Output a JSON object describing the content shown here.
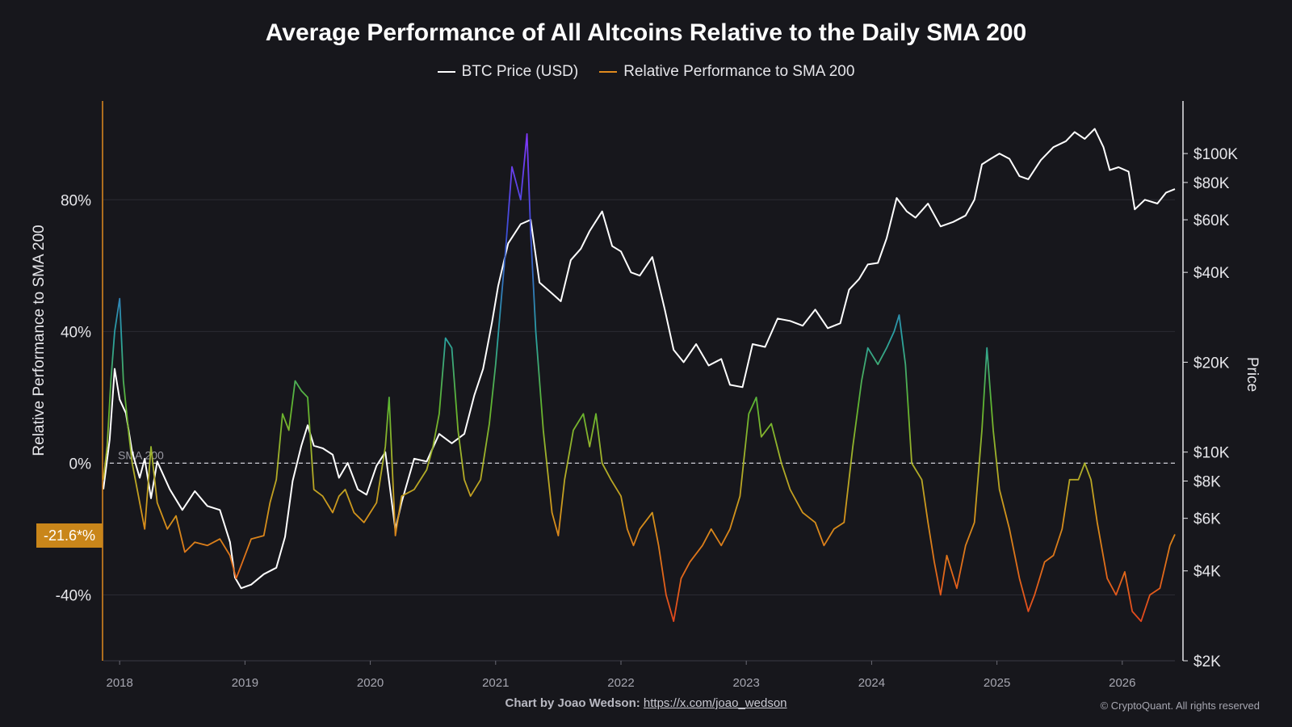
{
  "title": "Average Performance of All Altcoins Relative to the Daily SMA 200",
  "legend": [
    {
      "label": "BTC Price (USD)",
      "color": "#ffffff"
    },
    {
      "label": "Relative Performance to SMA 200",
      "color": "#e08a1e"
    }
  ],
  "footer": {
    "credit_prefix": "Chart by Joao Wedson:",
    "credit_link": "https://x.com/joao_wedson",
    "copyright": "© CryptoQuant. All rights reserved"
  },
  "current_badge": "-21.6*%",
  "sma_label": "SMA 200",
  "chart_data": {
    "type": "line",
    "title": "Average Performance of All Altcoins Relative to the Daily SMA 200",
    "xlabel": "",
    "ylabel_left": "Relative Performance to SMA 200",
    "ylabel_right": "Price",
    "x_ticks": [
      "2018",
      "2019",
      "2020",
      "2021",
      "2022",
      "2023",
      "2024",
      "2025",
      "2026"
    ],
    "y_left_ticks": [
      "80%",
      "40%",
      "0%",
      "-40%"
    ],
    "y_left_range": [
      -60,
      110
    ],
    "y_right_ticks": [
      "$100K",
      "$80K",
      "$60K",
      "$40K",
      "$20K",
      "$10K",
      "$8K",
      "$6K",
      "$4K",
      "$2K"
    ],
    "y_right_range": [
      2000,
      150000
    ],
    "y_right_scale": "log",
    "x_range": [
      2017.87,
      2026.42
    ],
    "reference_line": {
      "label": "SMA 200",
      "value": 0
    },
    "grid": true,
    "legend_position": "top-center",
    "series": [
      {
        "name": "BTC Price (USD)",
        "axis": "right",
        "color": "#ffffff",
        "points": [
          [
            2017.87,
            7500
          ],
          [
            2017.92,
            11000
          ],
          [
            2017.96,
            19000
          ],
          [
            2018.0,
            15000
          ],
          [
            2018.05,
            13500
          ],
          [
            2018.1,
            10000
          ],
          [
            2018.16,
            8200
          ],
          [
            2018.2,
            9500
          ],
          [
            2018.25,
            7000
          ],
          [
            2018.3,
            9300
          ],
          [
            2018.4,
            7500
          ],
          [
            2018.5,
            6400
          ],
          [
            2018.6,
            7400
          ],
          [
            2018.7,
            6600
          ],
          [
            2018.8,
            6400
          ],
          [
            2018.88,
            5000
          ],
          [
            2018.92,
            3800
          ],
          [
            2018.97,
            3500
          ],
          [
            2019.05,
            3600
          ],
          [
            2019.15,
            3900
          ],
          [
            2019.25,
            4100
          ],
          [
            2019.32,
            5200
          ],
          [
            2019.38,
            8000
          ],
          [
            2019.45,
            10500
          ],
          [
            2019.5,
            12300
          ],
          [
            2019.55,
            10500
          ],
          [
            2019.62,
            10300
          ],
          [
            2019.7,
            9800
          ],
          [
            2019.75,
            8200
          ],
          [
            2019.82,
            9200
          ],
          [
            2019.9,
            7500
          ],
          [
            2019.97,
            7200
          ],
          [
            2020.05,
            9000
          ],
          [
            2020.12,
            10000
          ],
          [
            2020.2,
            5500
          ],
          [
            2020.25,
            6800
          ],
          [
            2020.35,
            9500
          ],
          [
            2020.45,
            9300
          ],
          [
            2020.55,
            11500
          ],
          [
            2020.65,
            10700
          ],
          [
            2020.75,
            11500
          ],
          [
            2020.83,
            15500
          ],
          [
            2020.9,
            19000
          ],
          [
            2020.97,
            27000
          ],
          [
            2021.02,
            36000
          ],
          [
            2021.1,
            50000
          ],
          [
            2021.2,
            58000
          ],
          [
            2021.28,
            60000
          ],
          [
            2021.35,
            37000
          ],
          [
            2021.45,
            34000
          ],
          [
            2021.52,
            32000
          ],
          [
            2021.6,
            44000
          ],
          [
            2021.68,
            48000
          ],
          [
            2021.75,
            55000
          ],
          [
            2021.85,
            64000
          ],
          [
            2021.93,
            49000
          ],
          [
            2022.0,
            47000
          ],
          [
            2022.08,
            40000
          ],
          [
            2022.15,
            39000
          ],
          [
            2022.25,
            45000
          ],
          [
            2022.35,
            30000
          ],
          [
            2022.42,
            22000
          ],
          [
            2022.5,
            20000
          ],
          [
            2022.6,
            23000
          ],
          [
            2022.7,
            19500
          ],
          [
            2022.8,
            20500
          ],
          [
            2022.87,
            16800
          ],
          [
            2022.97,
            16500
          ],
          [
            2023.05,
            23000
          ],
          [
            2023.15,
            22500
          ],
          [
            2023.25,
            28000
          ],
          [
            2023.35,
            27500
          ],
          [
            2023.45,
            26500
          ],
          [
            2023.55,
            30000
          ],
          [
            2023.65,
            26000
          ],
          [
            2023.75,
            27000
          ],
          [
            2023.82,
            35000
          ],
          [
            2023.9,
            38000
          ],
          [
            2023.97,
            42500
          ],
          [
            2024.05,
            43000
          ],
          [
            2024.12,
            52000
          ],
          [
            2024.2,
            71000
          ],
          [
            2024.28,
            64000
          ],
          [
            2024.35,
            61000
          ],
          [
            2024.45,
            68000
          ],
          [
            2024.55,
            57000
          ],
          [
            2024.65,
            59000
          ],
          [
            2024.75,
            62000
          ],
          [
            2024.82,
            70000
          ],
          [
            2024.88,
            92000
          ],
          [
            2024.95,
            96000
          ],
          [
            2025.02,
            100000
          ],
          [
            2025.1,
            96000
          ],
          [
            2025.18,
            84000
          ],
          [
            2025.25,
            82000
          ],
          [
            2025.35,
            95000
          ],
          [
            2025.45,
            105000
          ],
          [
            2025.55,
            110000
          ],
          [
            2025.62,
            118000
          ],
          [
            2025.7,
            112000
          ],
          [
            2025.78,
            121000
          ],
          [
            2025.85,
            105000
          ],
          [
            2025.9,
            88000
          ],
          [
            2025.97,
            90000
          ],
          [
            2026.05,
            87000
          ],
          [
            2026.1,
            65000
          ],
          [
            2026.18,
            70000
          ],
          [
            2026.28,
            68000
          ],
          [
            2026.35,
            74000
          ],
          [
            2026.42,
            76000
          ]
        ]
      },
      {
        "name": "Relative Performance to SMA 200",
        "axis": "left",
        "color": "#e08a1e",
        "points": [
          [
            2017.87,
            -5
          ],
          [
            2017.9,
            5
          ],
          [
            2017.93,
            25
          ],
          [
            2017.96,
            40
          ],
          [
            2018.0,
            50
          ],
          [
            2018.03,
            25
          ],
          [
            2018.07,
            10
          ],
          [
            2018.1,
            0
          ],
          [
            2018.15,
            -10
          ],
          [
            2018.2,
            -20
          ],
          [
            2018.25,
            5
          ],
          [
            2018.3,
            -12
          ],
          [
            2018.38,
            -20
          ],
          [
            2018.45,
            -16
          ],
          [
            2018.52,
            -27
          ],
          [
            2018.6,
            -24
          ],
          [
            2018.7,
            -25
          ],
          [
            2018.8,
            -23
          ],
          [
            2018.88,
            -28
          ],
          [
            2018.93,
            -35
          ],
          [
            2018.98,
            -30
          ],
          [
            2019.05,
            -23
          ],
          [
            2019.15,
            -22
          ],
          [
            2019.2,
            -12
          ],
          [
            2019.25,
            -5
          ],
          [
            2019.3,
            15
          ],
          [
            2019.35,
            10
          ],
          [
            2019.4,
            25
          ],
          [
            2019.45,
            22
          ],
          [
            2019.5,
            20
          ],
          [
            2019.55,
            -8
          ],
          [
            2019.62,
            -10
          ],
          [
            2019.7,
            -15
          ],
          [
            2019.75,
            -10
          ],
          [
            2019.8,
            -8
          ],
          [
            2019.87,
            -15
          ],
          [
            2019.95,
            -18
          ],
          [
            2020.05,
            -12
          ],
          [
            2020.12,
            5
          ],
          [
            2020.15,
            20
          ],
          [
            2020.2,
            -22
          ],
          [
            2020.25,
            -10
          ],
          [
            2020.35,
            -8
          ],
          [
            2020.45,
            -2
          ],
          [
            2020.5,
            5
          ],
          [
            2020.55,
            15
          ],
          [
            2020.6,
            38
          ],
          [
            2020.65,
            35
          ],
          [
            2020.7,
            10
          ],
          [
            2020.75,
            -5
          ],
          [
            2020.8,
            -10
          ],
          [
            2020.88,
            -5
          ],
          [
            2020.95,
            12
          ],
          [
            2021.0,
            30
          ],
          [
            2021.08,
            65
          ],
          [
            2021.13,
            90
          ],
          [
            2021.2,
            80
          ],
          [
            2021.25,
            100
          ],
          [
            2021.28,
            70
          ],
          [
            2021.32,
            40
          ],
          [
            2021.38,
            10
          ],
          [
            2021.45,
            -15
          ],
          [
            2021.5,
            -22
          ],
          [
            2021.55,
            -5
          ],
          [
            2021.62,
            10
          ],
          [
            2021.7,
            15
          ],
          [
            2021.75,
            5
          ],
          [
            2021.8,
            15
          ],
          [
            2021.85,
            0
          ],
          [
            2021.92,
            -5
          ],
          [
            2022.0,
            -10
          ],
          [
            2022.05,
            -20
          ],
          [
            2022.1,
            -25
          ],
          [
            2022.15,
            -20
          ],
          [
            2022.25,
            -15
          ],
          [
            2022.3,
            -25
          ],
          [
            2022.36,
            -40
          ],
          [
            2022.42,
            -48
          ],
          [
            2022.48,
            -35
          ],
          [
            2022.55,
            -30
          ],
          [
            2022.65,
            -25
          ],
          [
            2022.72,
            -20
          ],
          [
            2022.8,
            -25
          ],
          [
            2022.87,
            -20
          ],
          [
            2022.95,
            -10
          ],
          [
            2023.02,
            15
          ],
          [
            2023.08,
            20
          ],
          [
            2023.12,
            8
          ],
          [
            2023.2,
            12
          ],
          [
            2023.28,
            0
          ],
          [
            2023.35,
            -8
          ],
          [
            2023.45,
            -15
          ],
          [
            2023.55,
            -18
          ],
          [
            2023.62,
            -25
          ],
          [
            2023.7,
            -20
          ],
          [
            2023.78,
            -18
          ],
          [
            2023.85,
            5
          ],
          [
            2023.92,
            25
          ],
          [
            2023.97,
            35
          ],
          [
            2024.05,
            30
          ],
          [
            2024.12,
            35
          ],
          [
            2024.18,
            40
          ],
          [
            2024.22,
            45
          ],
          [
            2024.27,
            30
          ],
          [
            2024.32,
            0
          ],
          [
            2024.4,
            -5
          ],
          [
            2024.45,
            -18
          ],
          [
            2024.5,
            -30
          ],
          [
            2024.55,
            -40
          ],
          [
            2024.6,
            -28
          ],
          [
            2024.68,
            -38
          ],
          [
            2024.75,
            -25
          ],
          [
            2024.82,
            -18
          ],
          [
            2024.88,
            10
          ],
          [
            2024.92,
            35
          ],
          [
            2024.97,
            10
          ],
          [
            2025.02,
            -8
          ],
          [
            2025.1,
            -20
          ],
          [
            2025.18,
            -35
          ],
          [
            2025.25,
            -45
          ],
          [
            2025.3,
            -40
          ],
          [
            2025.38,
            -30
          ],
          [
            2025.45,
            -28
          ],
          [
            2025.52,
            -20
          ],
          [
            2025.58,
            -5
          ],
          [
            2025.65,
            -5
          ],
          [
            2025.7,
            0
          ],
          [
            2025.75,
            -5
          ],
          [
            2025.8,
            -18
          ],
          [
            2025.88,
            -35
          ],
          [
            2025.95,
            -40
          ],
          [
            2026.02,
            -33
          ],
          [
            2026.08,
            -45
          ],
          [
            2026.15,
            -48
          ],
          [
            2026.22,
            -40
          ],
          [
            2026.3,
            -38
          ],
          [
            2026.38,
            -25
          ],
          [
            2026.42,
            -21.6
          ]
        ]
      }
    ]
  }
}
